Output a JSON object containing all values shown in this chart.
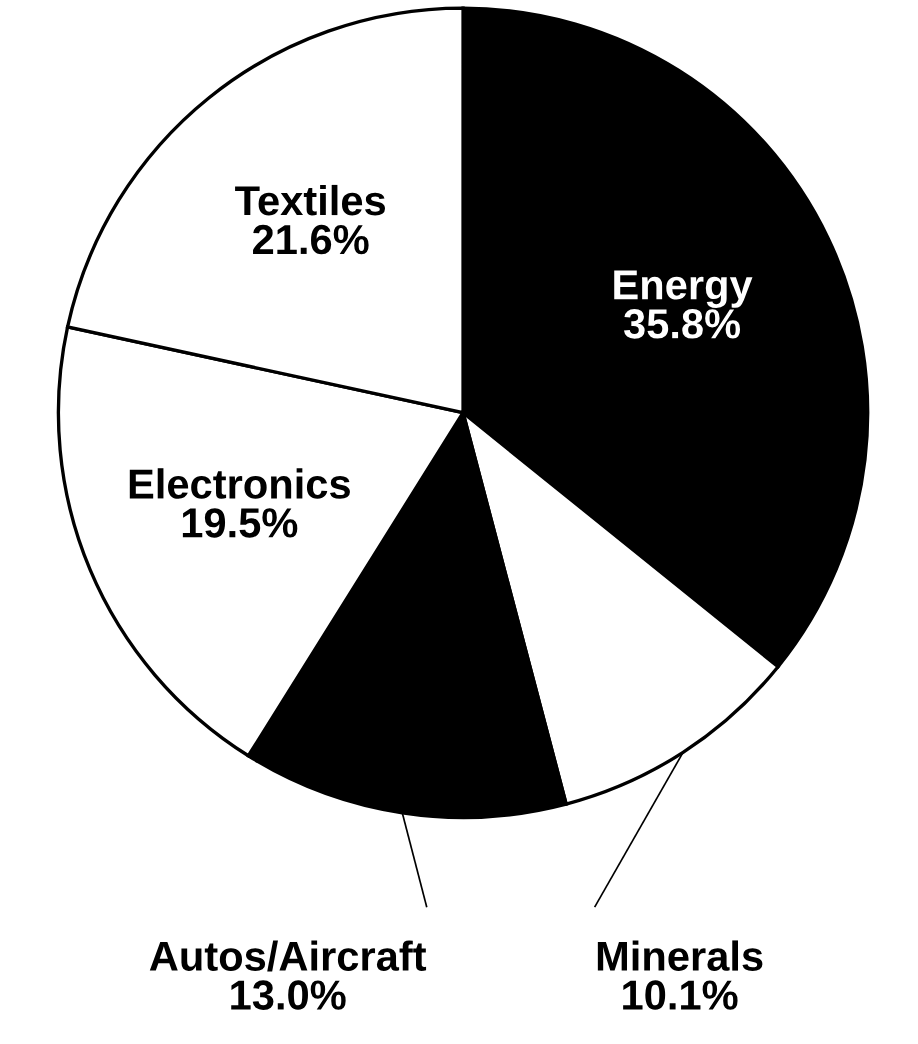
{
  "chart_data": {
    "type": "pie",
    "categories": [
      "Energy",
      "Minerals",
      "Autos/Aircraft",
      "Electronics",
      "Textiles"
    ],
    "values": [
      35.8,
      10.1,
      13.0,
      19.5,
      21.6
    ],
    "colors": [
      "#000000",
      "#ffffff",
      "#000000",
      "#ffffff",
      "#ffffff"
    ],
    "value_labels": [
      "35.8%",
      "10.1%",
      "13.0%",
      "19.5%",
      "21.6%"
    ],
    "legend": false
  }
}
